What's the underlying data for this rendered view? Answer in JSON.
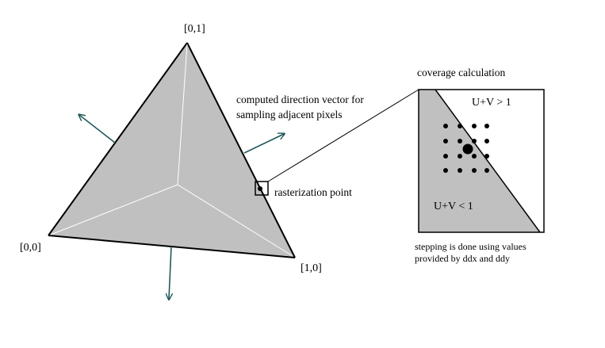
{
  "triangle": {
    "vertex_top_label": "[0,1]",
    "vertex_left_label": "[0,0]",
    "vertex_right_label": "[1,0]",
    "fill_color": "#c0c0c0",
    "arrow_color": "#1f5a5a"
  },
  "annotations": {
    "direction_vector_line1": "computed direction vector for",
    "direction_vector_line2": "sampling adjacent pixels",
    "rasterization_point": "rasterization point"
  },
  "coverage": {
    "title": "coverage calculation",
    "upper_region": "U+V > 1",
    "lower_region": "U+V < 1",
    "note_line1": "stepping is done using values",
    "note_line2": "provided by ddx and ddy"
  }
}
